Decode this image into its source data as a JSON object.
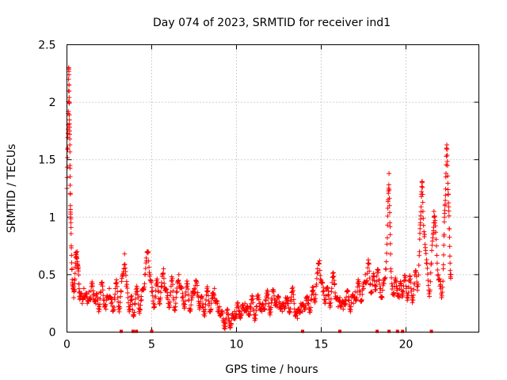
{
  "chart_data": {
    "type": "scatter",
    "title": "Day 074 of 2023, SRMTID for receiver ind1",
    "xlabel": "GPS time / hours",
    "ylabel": "SRMTID / TECUs",
    "xlim": [
      0,
      24.3
    ],
    "ylim": [
      0,
      2.5
    ],
    "grid": true,
    "marker": "+",
    "color": "#ff0000",
    "x_ticks": [
      {
        "value": 0,
        "label": "0"
      },
      {
        "value": 5,
        "label": "5"
      },
      {
        "value": 10,
        "label": "10"
      },
      {
        "value": 15,
        "label": "15"
      },
      {
        "value": 20,
        "label": "20"
      }
    ],
    "y_ticks": [
      {
        "value": 0,
        "label": "0"
      },
      {
        "value": 0.5,
        "label": "0.5"
      },
      {
        "value": 1,
        "label": "1"
      },
      {
        "value": 1.5,
        "label": "1.5"
      },
      {
        "value": 2,
        "label": "2"
      },
      {
        "value": 2.5,
        "label": "2.5"
      }
    ],
    "series": [
      {
        "name": "ind1",
        "points": [
          [
            0.0,
            1.25
          ],
          [
            0.05,
            1.6
          ],
          [
            0.08,
            1.9
          ],
          [
            0.1,
            2.3
          ],
          [
            0.12,
            2.15
          ],
          [
            0.14,
            2.0
          ],
          [
            0.16,
            1.75
          ],
          [
            0.18,
            1.45
          ],
          [
            0.2,
            1.2
          ],
          [
            0.22,
            1.0
          ],
          [
            0.25,
            0.75
          ],
          [
            0.3,
            0.55
          ],
          [
            0.35,
            0.38
          ],
          [
            0.4,
            0.3
          ],
          [
            0.45,
            0.45
          ],
          [
            0.5,
            0.6
          ],
          [
            0.55,
            0.65
          ],
          [
            0.6,
            0.7
          ],
          [
            0.65,
            0.55
          ],
          [
            0.7,
            0.42
          ],
          [
            0.75,
            0.35
          ],
          [
            0.8,
            0.3
          ],
          [
            0.9,
            0.25
          ],
          [
            1.0,
            0.38
          ],
          [
            1.1,
            0.3
          ],
          [
            1.2,
            0.25
          ],
          [
            1.3,
            0.35
          ],
          [
            1.4,
            0.28
          ],
          [
            1.5,
            0.42
          ],
          [
            1.6,
            0.33
          ],
          [
            1.7,
            0.25
          ],
          [
            1.8,
            0.3
          ],
          [
            1.9,
            0.22
          ],
          [
            2.0,
            0.35
          ],
          [
            2.1,
            0.4
          ],
          [
            2.2,
            0.28
          ],
          [
            2.3,
            0.2
          ],
          [
            2.4,
            0.3
          ],
          [
            2.5,
            0.38
          ],
          [
            2.6,
            0.25
          ],
          [
            2.7,
            0.18
          ],
          [
            2.8,
            0.3
          ],
          [
            2.9,
            0.42
          ],
          [
            3.0,
            0.3
          ],
          [
            3.1,
            0.22
          ],
          [
            3.2,
            0.35
          ],
          [
            3.3,
            0.5
          ],
          [
            3.4,
            0.68
          ],
          [
            3.5,
            0.4
          ],
          [
            3.6,
            0.3
          ],
          [
            3.7,
            0.22
          ],
          [
            3.8,
            0.28
          ],
          [
            3.9,
            0.15
          ],
          [
            4.0,
            0.25
          ],
          [
            4.1,
            0.35
          ],
          [
            4.2,
            0.3
          ],
          [
            4.3,
            0.2
          ],
          [
            4.4,
            0.28
          ],
          [
            4.5,
            0.38
          ],
          [
            4.6,
            0.5
          ],
          [
            4.7,
            0.62
          ],
          [
            4.8,
            0.7
          ],
          [
            4.9,
            0.5
          ],
          [
            5.0,
            0.35
          ],
          [
            5.1,
            0.25
          ],
          [
            5.2,
            0.3
          ],
          [
            5.3,
            0.42
          ],
          [
            5.4,
            0.35
          ],
          [
            5.5,
            0.28
          ],
          [
            5.6,
            0.4
          ],
          [
            5.7,
            0.55
          ],
          [
            5.8,
            0.38
          ],
          [
            5.9,
            0.3
          ],
          [
            6.0,
            0.25
          ],
          [
            6.1,
            0.32
          ],
          [
            6.2,
            0.45
          ],
          [
            6.3,
            0.28
          ],
          [
            6.4,
            0.22
          ],
          [
            6.5,
            0.35
          ],
          [
            6.6,
            0.5
          ],
          [
            6.7,
            0.4
          ],
          [
            6.8,
            0.3
          ],
          [
            6.9,
            0.25
          ],
          [
            7.0,
            0.32
          ],
          [
            7.1,
            0.4
          ],
          [
            7.2,
            0.28
          ],
          [
            7.3,
            0.2
          ],
          [
            7.4,
            0.3
          ],
          [
            7.5,
            0.38
          ],
          [
            7.6,
            0.45
          ],
          [
            7.7,
            0.32
          ],
          [
            7.8,
            0.25
          ],
          [
            7.9,
            0.3
          ],
          [
            8.0,
            0.22
          ],
          [
            8.1,
            0.18
          ],
          [
            8.2,
            0.28
          ],
          [
            8.3,
            0.35
          ],
          [
            8.4,
            0.25
          ],
          [
            8.5,
            0.2
          ],
          [
            8.6,
            0.3
          ],
          [
            8.7,
            0.38
          ],
          [
            8.8,
            0.25
          ],
          [
            8.9,
            0.18
          ],
          [
            9.0,
            0.22
          ],
          [
            9.1,
            0.15
          ],
          [
            9.2,
            0.1
          ],
          [
            9.3,
            0.08
          ],
          [
            9.4,
            0.12
          ],
          [
            9.5,
            0.15
          ],
          [
            9.6,
            0.1
          ],
          [
            9.7,
            0.07
          ],
          [
            9.8,
            0.12
          ],
          [
            9.9,
            0.18
          ],
          [
            10.0,
            0.15
          ],
          [
            10.1,
            0.22
          ],
          [
            10.2,
            0.18
          ],
          [
            10.3,
            0.15
          ],
          [
            10.4,
            0.2
          ],
          [
            10.5,
            0.25
          ],
          [
            10.6,
            0.18
          ],
          [
            10.7,
            0.15
          ],
          [
            10.8,
            0.22
          ],
          [
            10.9,
            0.28
          ],
          [
            11.0,
            0.2
          ],
          [
            11.1,
            0.15
          ],
          [
            11.2,
            0.22
          ],
          [
            11.3,
            0.3
          ],
          [
            11.4,
            0.25
          ],
          [
            11.5,
            0.18
          ],
          [
            11.6,
            0.2
          ],
          [
            11.7,
            0.28
          ],
          [
            11.8,
            0.32
          ],
          [
            11.9,
            0.25
          ],
          [
            12.0,
            0.2
          ],
          [
            12.1,
            0.28
          ],
          [
            12.2,
            0.35
          ],
          [
            12.3,
            0.28
          ],
          [
            12.4,
            0.22
          ],
          [
            12.5,
            0.3
          ],
          [
            12.6,
            0.25
          ],
          [
            12.7,
            0.18
          ],
          [
            12.8,
            0.22
          ],
          [
            12.9,
            0.3
          ],
          [
            13.0,
            0.25
          ],
          [
            13.1,
            0.18
          ],
          [
            13.2,
            0.28
          ],
          [
            13.3,
            0.35
          ],
          [
            13.4,
            0.25
          ],
          [
            13.5,
            0.18
          ],
          [
            13.6,
            0.12
          ],
          [
            13.7,
            0.2
          ],
          [
            13.8,
            0.25
          ],
          [
            13.9,
            0.18
          ],
          [
            14.0,
            0.22
          ],
          [
            14.1,
            0.3
          ],
          [
            14.2,
            0.25
          ],
          [
            14.3,
            0.2
          ],
          [
            14.4,
            0.28
          ],
          [
            14.5,
            0.35
          ],
          [
            14.6,
            0.28
          ],
          [
            14.7,
            0.4
          ],
          [
            14.8,
            0.52
          ],
          [
            14.9,
            0.62
          ],
          [
            15.0,
            0.45
          ],
          [
            15.1,
            0.35
          ],
          [
            15.2,
            0.28
          ],
          [
            15.3,
            0.38
          ],
          [
            15.4,
            0.32
          ],
          [
            15.5,
            0.25
          ],
          [
            15.6,
            0.35
          ],
          [
            15.7,
            0.48
          ],
          [
            15.8,
            0.42
          ],
          [
            15.9,
            0.3
          ],
          [
            16.0,
            0.22
          ],
          [
            16.1,
            0.3
          ],
          [
            16.2,
            0.25
          ],
          [
            16.3,
            0.2
          ],
          [
            16.4,
            0.28
          ],
          [
            16.5,
            0.35
          ],
          [
            16.6,
            0.28
          ],
          [
            16.7,
            0.22
          ],
          [
            16.8,
            0.3
          ],
          [
            16.9,
            0.25
          ],
          [
            17.0,
            0.35
          ],
          [
            17.1,
            0.3
          ],
          [
            17.2,
            0.42
          ],
          [
            17.3,
            0.35
          ],
          [
            17.4,
            0.28
          ],
          [
            17.5,
            0.38
          ],
          [
            17.6,
            0.5
          ],
          [
            17.7,
            0.45
          ],
          [
            17.8,
            0.6
          ],
          [
            17.9,
            0.42
          ],
          [
            18.0,
            0.35
          ],
          [
            18.1,
            0.48
          ],
          [
            18.2,
            0.4
          ],
          [
            18.3,
            0.52
          ],
          [
            18.4,
            0.45
          ],
          [
            18.5,
            0.38
          ],
          [
            18.6,
            0.3
          ],
          [
            18.7,
            0.42
          ],
          [
            18.8,
            0.55
          ],
          [
            18.9,
            0.82
          ],
          [
            18.95,
            1.15
          ],
          [
            19.0,
            1.38
          ],
          [
            19.05,
            0.95
          ],
          [
            19.1,
            0.55
          ],
          [
            19.2,
            0.4
          ],
          [
            19.3,
            0.32
          ],
          [
            19.4,
            0.45
          ],
          [
            19.5,
            0.38
          ],
          [
            19.6,
            0.3
          ],
          [
            19.7,
            0.42
          ],
          [
            19.8,
            0.35
          ],
          [
            19.9,
            0.45
          ],
          [
            20.0,
            0.4
          ],
          [
            20.1,
            0.32
          ],
          [
            20.2,
            0.45
          ],
          [
            20.3,
            0.38
          ],
          [
            20.4,
            0.3
          ],
          [
            20.5,
            0.42
          ],
          [
            20.6,
            0.52
          ],
          [
            20.7,
            0.4
          ],
          [
            20.8,
            0.7
          ],
          [
            20.85,
            0.95
          ],
          [
            20.9,
            1.2
          ],
          [
            20.95,
            1.3
          ],
          [
            21.0,
            1.05
          ],
          [
            21.1,
            0.85
          ],
          [
            21.2,
            0.6
          ],
          [
            21.3,
            0.45
          ],
          [
            21.4,
            0.35
          ],
          [
            21.5,
            0.6
          ],
          [
            21.6,
            0.85
          ],
          [
            21.65,
            1.05
          ],
          [
            21.7,
            0.95
          ],
          [
            21.8,
            0.75
          ],
          [
            21.9,
            0.5
          ],
          [
            22.0,
            0.4
          ],
          [
            22.1,
            0.3
          ],
          [
            22.2,
            0.55
          ],
          [
            22.25,
            0.85
          ],
          [
            22.3,
            1.1
          ],
          [
            22.35,
            1.35
          ],
          [
            22.4,
            1.6
          ],
          [
            22.45,
            1.45
          ],
          [
            22.5,
            1.2
          ],
          [
            22.55,
            0.9
          ],
          [
            22.6,
            0.6
          ],
          [
            22.65,
            0.5
          ]
        ],
        "baseline_points": [
          [
            3.2,
            0.0
          ],
          [
            3.9,
            0.0
          ],
          [
            4.1,
            0.0
          ],
          [
            5.0,
            0.0
          ],
          [
            13.9,
            0.0
          ],
          [
            16.1,
            0.0
          ],
          [
            18.3,
            0.0
          ],
          [
            19.0,
            0.0
          ],
          [
            19.5,
            0.0
          ],
          [
            19.8,
            0.0
          ],
          [
            21.5,
            0.0
          ]
        ]
      }
    ]
  }
}
